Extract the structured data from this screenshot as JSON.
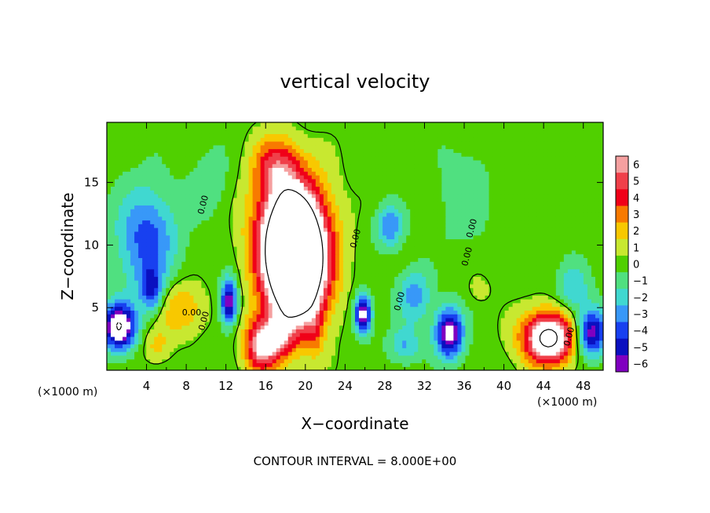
{
  "chart_data": {
    "type": "heatmap",
    "title": "vertical velocity",
    "xlabel": "X−coordinate",
    "ylabel": "Z−coordinate",
    "x_unit_left": "(×1000 m)",
    "x_unit_right": "(×1000 m)",
    "footer": "CONTOUR INTERVAL = 8.000E+00",
    "xlim": [
      0,
      50
    ],
    "ylim": [
      0,
      19.8
    ],
    "x_ticks": [
      4,
      8,
      12,
      16,
      20,
      24,
      28,
      32,
      36,
      40,
      44,
      48
    ],
    "x_tick_labels": [
      "4",
      "8",
      "12",
      "16",
      "20",
      "24",
      "28",
      "32",
      "36",
      "40",
      "44",
      "48"
    ],
    "y_ticks": [
      5,
      10,
      15
    ],
    "y_tick_labels": [
      "5",
      "10",
      "15"
    ],
    "colorbar": {
      "levels": [
        6,
        5,
        4,
        3,
        2,
        1,
        0,
        -1,
        -2,
        -3,
        -4,
        -5,
        -6
      ],
      "labels": [
        "6",
        "5",
        "4",
        "3",
        "2",
        "1",
        "0",
        "−1",
        "−2",
        "−3",
        "−4",
        "−5",
        "−6"
      ],
      "colors": [
        "#f5a0a0",
        "#f0404a",
        "#f00018",
        "#f87a00",
        "#f8c800",
        "#c8e830",
        "#50d000",
        "#50e080",
        "#40d8d0",
        "#3898f8",
        "#1840f0",
        "#0a10c0",
        "#8000c0"
      ],
      "over_color": "#ffffff",
      "under_color": "#ffffff"
    },
    "contour_labels": [
      "0.00",
      "0.00",
      "0.00",
      "0.00",
      "0.00",
      "0.00",
      "0.00",
      "0.00"
    ],
    "features": [
      {
        "x": 19,
        "z": 8,
        "sx": 2.2,
        "sz": 3.2,
        "w": 14
      },
      {
        "x": 18.5,
        "z": 12,
        "sx": 2.5,
        "sz": 3,
        "w": 7
      },
      {
        "x": 17,
        "z": 16.5,
        "sx": 1.6,
        "sz": 1.6,
        "w": 3.5
      },
      {
        "x": 15.5,
        "z": 2,
        "sx": 1.2,
        "sz": 1.6,
        "w": 6
      },
      {
        "x": 17.5,
        "z": 2.5,
        "sx": 1,
        "sz": 1.2,
        "w": 3
      },
      {
        "x": 44.5,
        "z": 2.6,
        "sx": 1.9,
        "sz": 1.5,
        "w": 9
      },
      {
        "x": 7.5,
        "z": 5,
        "sx": 1.6,
        "sz": 1.5,
        "w": 2.8
      },
      {
        "x": 5,
        "z": 2,
        "sx": 1,
        "sz": 1,
        "w": 1.8
      },
      {
        "x": 21,
        "z": 3,
        "sx": 0.6,
        "sz": 1.5,
        "w": 1.6
      },
      {
        "x": 37.5,
        "z": 6.5,
        "sx": 0.8,
        "sz": 0.8,
        "w": 1
      },
      {
        "x": 4,
        "z": 10.5,
        "sx": 2.2,
        "sz": 3,
        "w": -4
      },
      {
        "x": 1.2,
        "z": 3.5,
        "sx": 1.2,
        "sz": 1.3,
        "w": -8
      },
      {
        "x": 4.5,
        "z": 6.5,
        "sx": 0.8,
        "sz": 1.2,
        "w": -4
      },
      {
        "x": 12.3,
        "z": 5.5,
        "sx": 0.6,
        "sz": 1.3,
        "w": -6.5
      },
      {
        "x": 25.8,
        "z": 4.5,
        "sx": 0.6,
        "sz": 1.1,
        "w": -7
      },
      {
        "x": 28.5,
        "z": 11.5,
        "sx": 1,
        "sz": 1.2,
        "w": -3.5
      },
      {
        "x": 34.5,
        "z": 3,
        "sx": 1,
        "sz": 1.4,
        "w": -7
      },
      {
        "x": 31,
        "z": 6,
        "sx": 1.2,
        "sz": 1.5,
        "w": -3
      },
      {
        "x": 48.8,
        "z": 3,
        "sx": 1.1,
        "sz": 1.3,
        "w": -6.5
      },
      {
        "x": 47,
        "z": 6.5,
        "sx": 1.2,
        "sz": 1.4,
        "w": -2.5
      },
      {
        "x": 10.5,
        "z": 15,
        "sx": 1.5,
        "sz": 2,
        "w": -1.2
      },
      {
        "x": 36,
        "z": 14,
        "sx": 2,
        "sz": 3,
        "w": -1.2
      },
      {
        "x": 30,
        "z": 2,
        "sx": 1.2,
        "sz": 1,
        "w": -2.5
      }
    ]
  }
}
